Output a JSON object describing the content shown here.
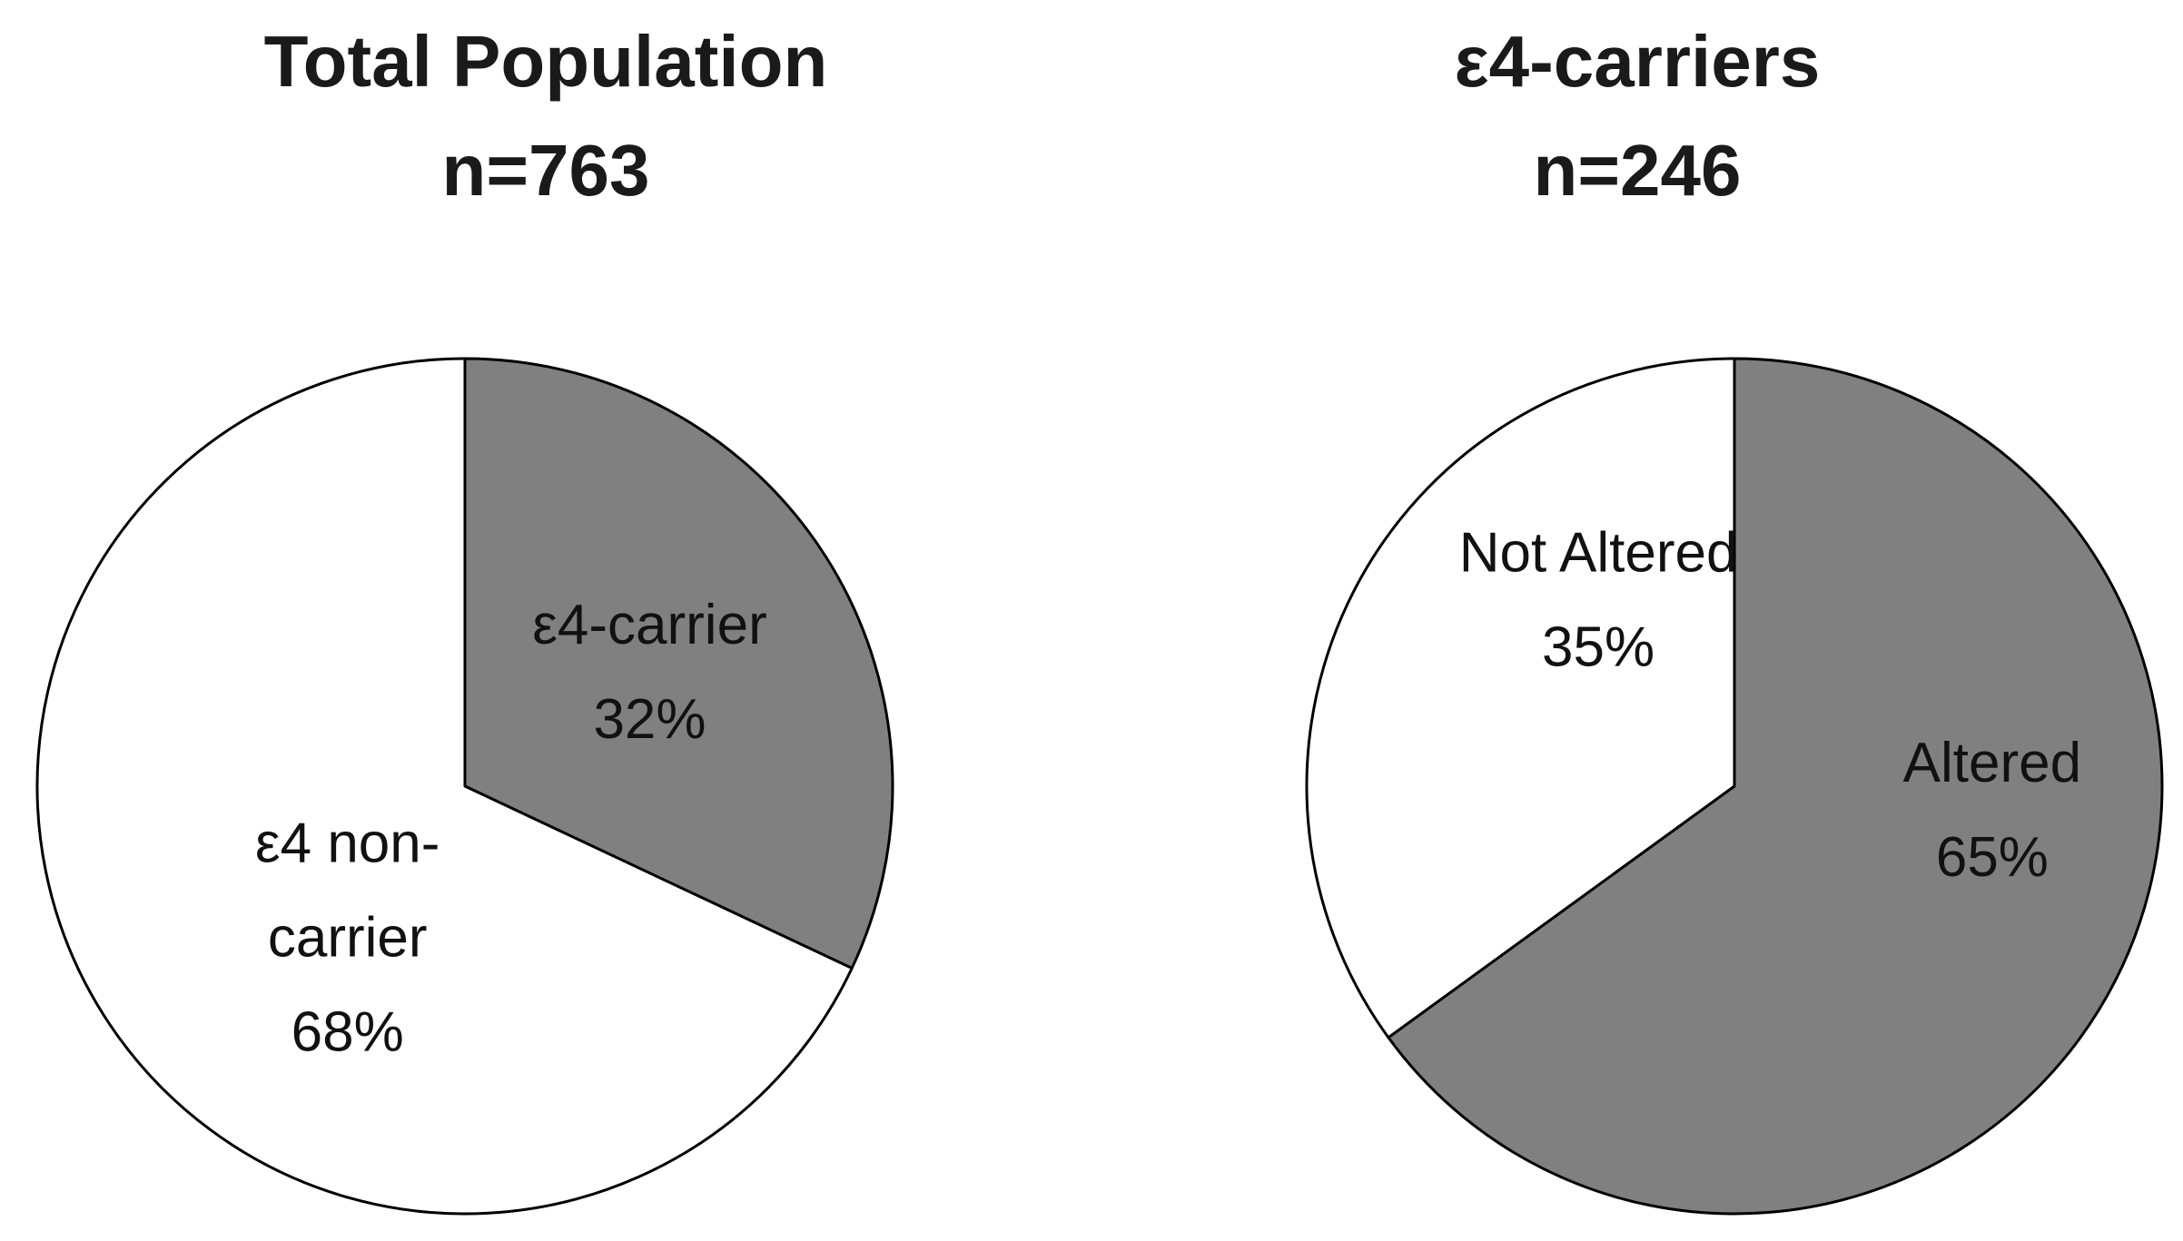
{
  "chart_data": [
    {
      "type": "pie",
      "title": "Total Population",
      "subtitle": "n=763",
      "slices": [
        {
          "label_lines": [
            "ε4-carrier"
          ],
          "value": 32,
          "value_label": "32%",
          "color": "#808080"
        },
        {
          "label_lines": [
            "ε4 non-",
            "carrier"
          ],
          "value": 68,
          "value_label": "68%",
          "color": "#ffffff"
        }
      ]
    },
    {
      "type": "pie",
      "title": "ε4-carriers",
      "subtitle": "n=246",
      "slices": [
        {
          "label_lines": [
            "Altered"
          ],
          "value": 65,
          "value_label": "65%",
          "color": "#808080"
        },
        {
          "label_lines": [
            "Not Altered"
          ],
          "value": 35,
          "value_label": "35%",
          "color": "#ffffff"
        }
      ]
    }
  ]
}
